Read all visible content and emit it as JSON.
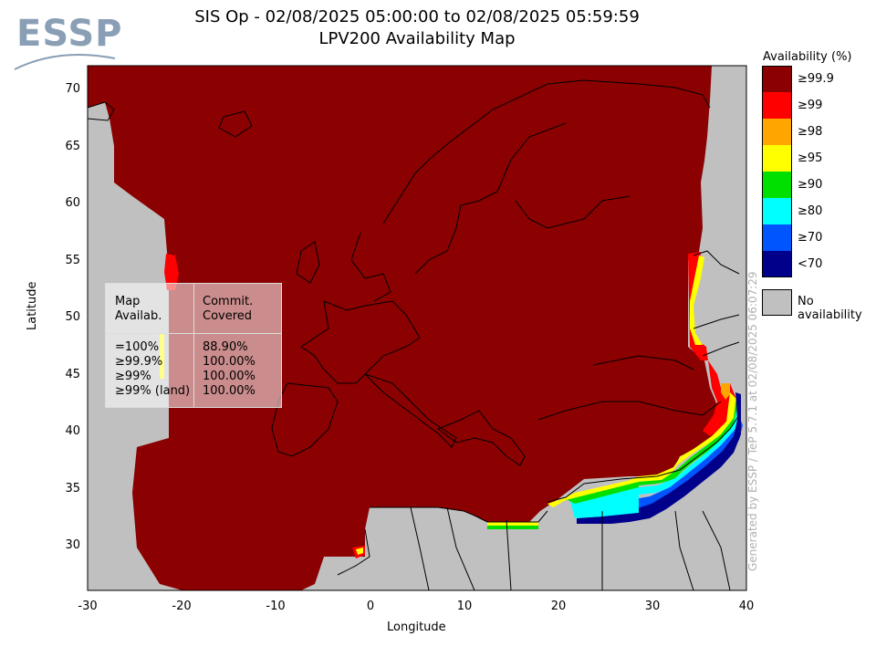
{
  "header": {
    "title_line1": "SIS Op - 02/08/2025 05:00:00 to 02/08/2025 05:59:59",
    "title_line2": "LPV200 Availability Map"
  },
  "logo": {
    "text": "ESSP"
  },
  "axes": {
    "xlabel": "Longitude",
    "ylabel": "Latitude",
    "xticks": [
      "-30",
      "-20",
      "-10",
      "0",
      "10",
      "20",
      "30",
      "40"
    ],
    "yticks": [
      "70",
      "65",
      "60",
      "55",
      "50",
      "45",
      "40",
      "35",
      "30"
    ],
    "xlim": [
      -30,
      40
    ],
    "ylim": [
      26,
      72
    ]
  },
  "legend": {
    "title": "Availability (%)",
    "items": [
      {
        "label": "≥99.9",
        "color": "#8b0000"
      },
      {
        "label": "≥99",
        "color": "#ff0000"
      },
      {
        "label": "≥98",
        "color": "#ffa500"
      },
      {
        "label": "≥95",
        "color": "#ffff00"
      },
      {
        "label": "≥90",
        "color": "#00e000"
      },
      {
        "label": "≥80",
        "color": "#00ffff"
      },
      {
        "label": "≥70",
        "color": "#0055ff"
      },
      {
        "label": "<70",
        "color": "#00008b"
      }
    ],
    "no_availability": {
      "label": "No availability",
      "color": "#c0c0c0"
    }
  },
  "stats": {
    "col1_header": [
      "Map",
      "Availab."
    ],
    "col2_header": [
      "Commit.",
      "Covered"
    ],
    "rows": [
      {
        "threshold": "=100%",
        "covered": "88.90%"
      },
      {
        "threshold": "≥99.9%",
        "covered": "100.00%"
      },
      {
        "threshold": "≥99%",
        "covered": "100.00%"
      },
      {
        "threshold": "≥99% (land)",
        "covered": "100.00%"
      }
    ]
  },
  "credit": "Generated by ESSP / TeP 5.7.1 at 02/08/2025 06:07:29"
}
